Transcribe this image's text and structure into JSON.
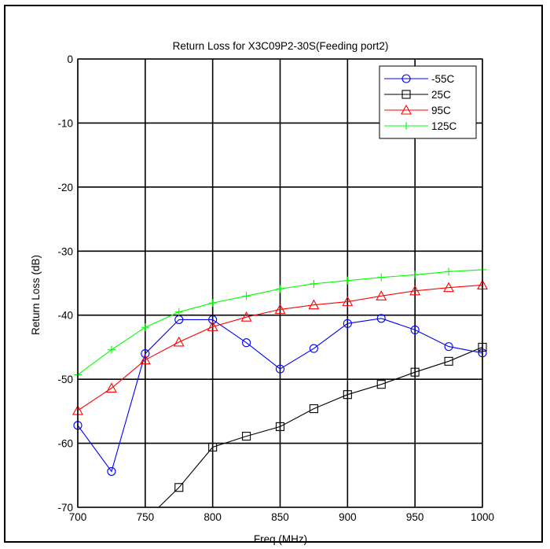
{
  "chart_data": {
    "type": "line",
    "title": "Return Loss for X3C09P2-30S(Feeding port2)",
    "xlabel": "Freq (MHz)",
    "ylabel": "Return Loss (dB)",
    "xlim": [
      700,
      1000
    ],
    "ylim": [
      -70,
      0
    ],
    "xticks": [
      700,
      750,
      800,
      850,
      900,
      950,
      1000
    ],
    "yticks": [
      0,
      -10,
      -20,
      -30,
      -40,
      -50,
      -60,
      -70
    ],
    "grid": true,
    "legend_position": "top-right",
    "x": [
      700,
      725,
      750,
      775,
      800,
      825,
      850,
      875,
      900,
      925,
      950,
      975,
      1000
    ],
    "series": [
      {
        "name": "-55C",
        "color": "#0000ff",
        "marker": "circle",
        "values": [
          -57.2,
          -64.4,
          -46.0,
          -40.7,
          -40.7,
          -44.3,
          -48.4,
          -45.2,
          -41.3,
          -40.5,
          -42.3,
          -44.9,
          -45.9
        ]
      },
      {
        "name": "25C",
        "color": "#000000",
        "marker": "square",
        "x": [
          760,
          775,
          800,
          825,
          850,
          875,
          900,
          925,
          950,
          975,
          1000
        ],
        "values": [
          -70,
          -66.9,
          -60.6,
          -58.9,
          -57.4,
          -54.6,
          -52.4,
          -50.8,
          -48.9,
          -47.2,
          -45.0
        ],
        "marker_from": 1
      },
      {
        "name": "95C",
        "color": "#ff0000",
        "marker": "triangle",
        "values": [
          -54.9,
          -51.4,
          -47.0,
          -44.2,
          -41.8,
          -40.3,
          -39.1,
          -38.4,
          -37.9,
          -37.0,
          -36.2,
          -35.7,
          -35.3
        ]
      },
      {
        "name": "125C",
        "color": "#00ff00",
        "marker": "plus",
        "values": [
          -49.3,
          -45.4,
          -41.9,
          -39.5,
          -38.1,
          -37.0,
          -35.9,
          -35.1,
          -34.6,
          -34.1,
          -33.7,
          -33.2,
          -32.9
        ]
      }
    ]
  }
}
